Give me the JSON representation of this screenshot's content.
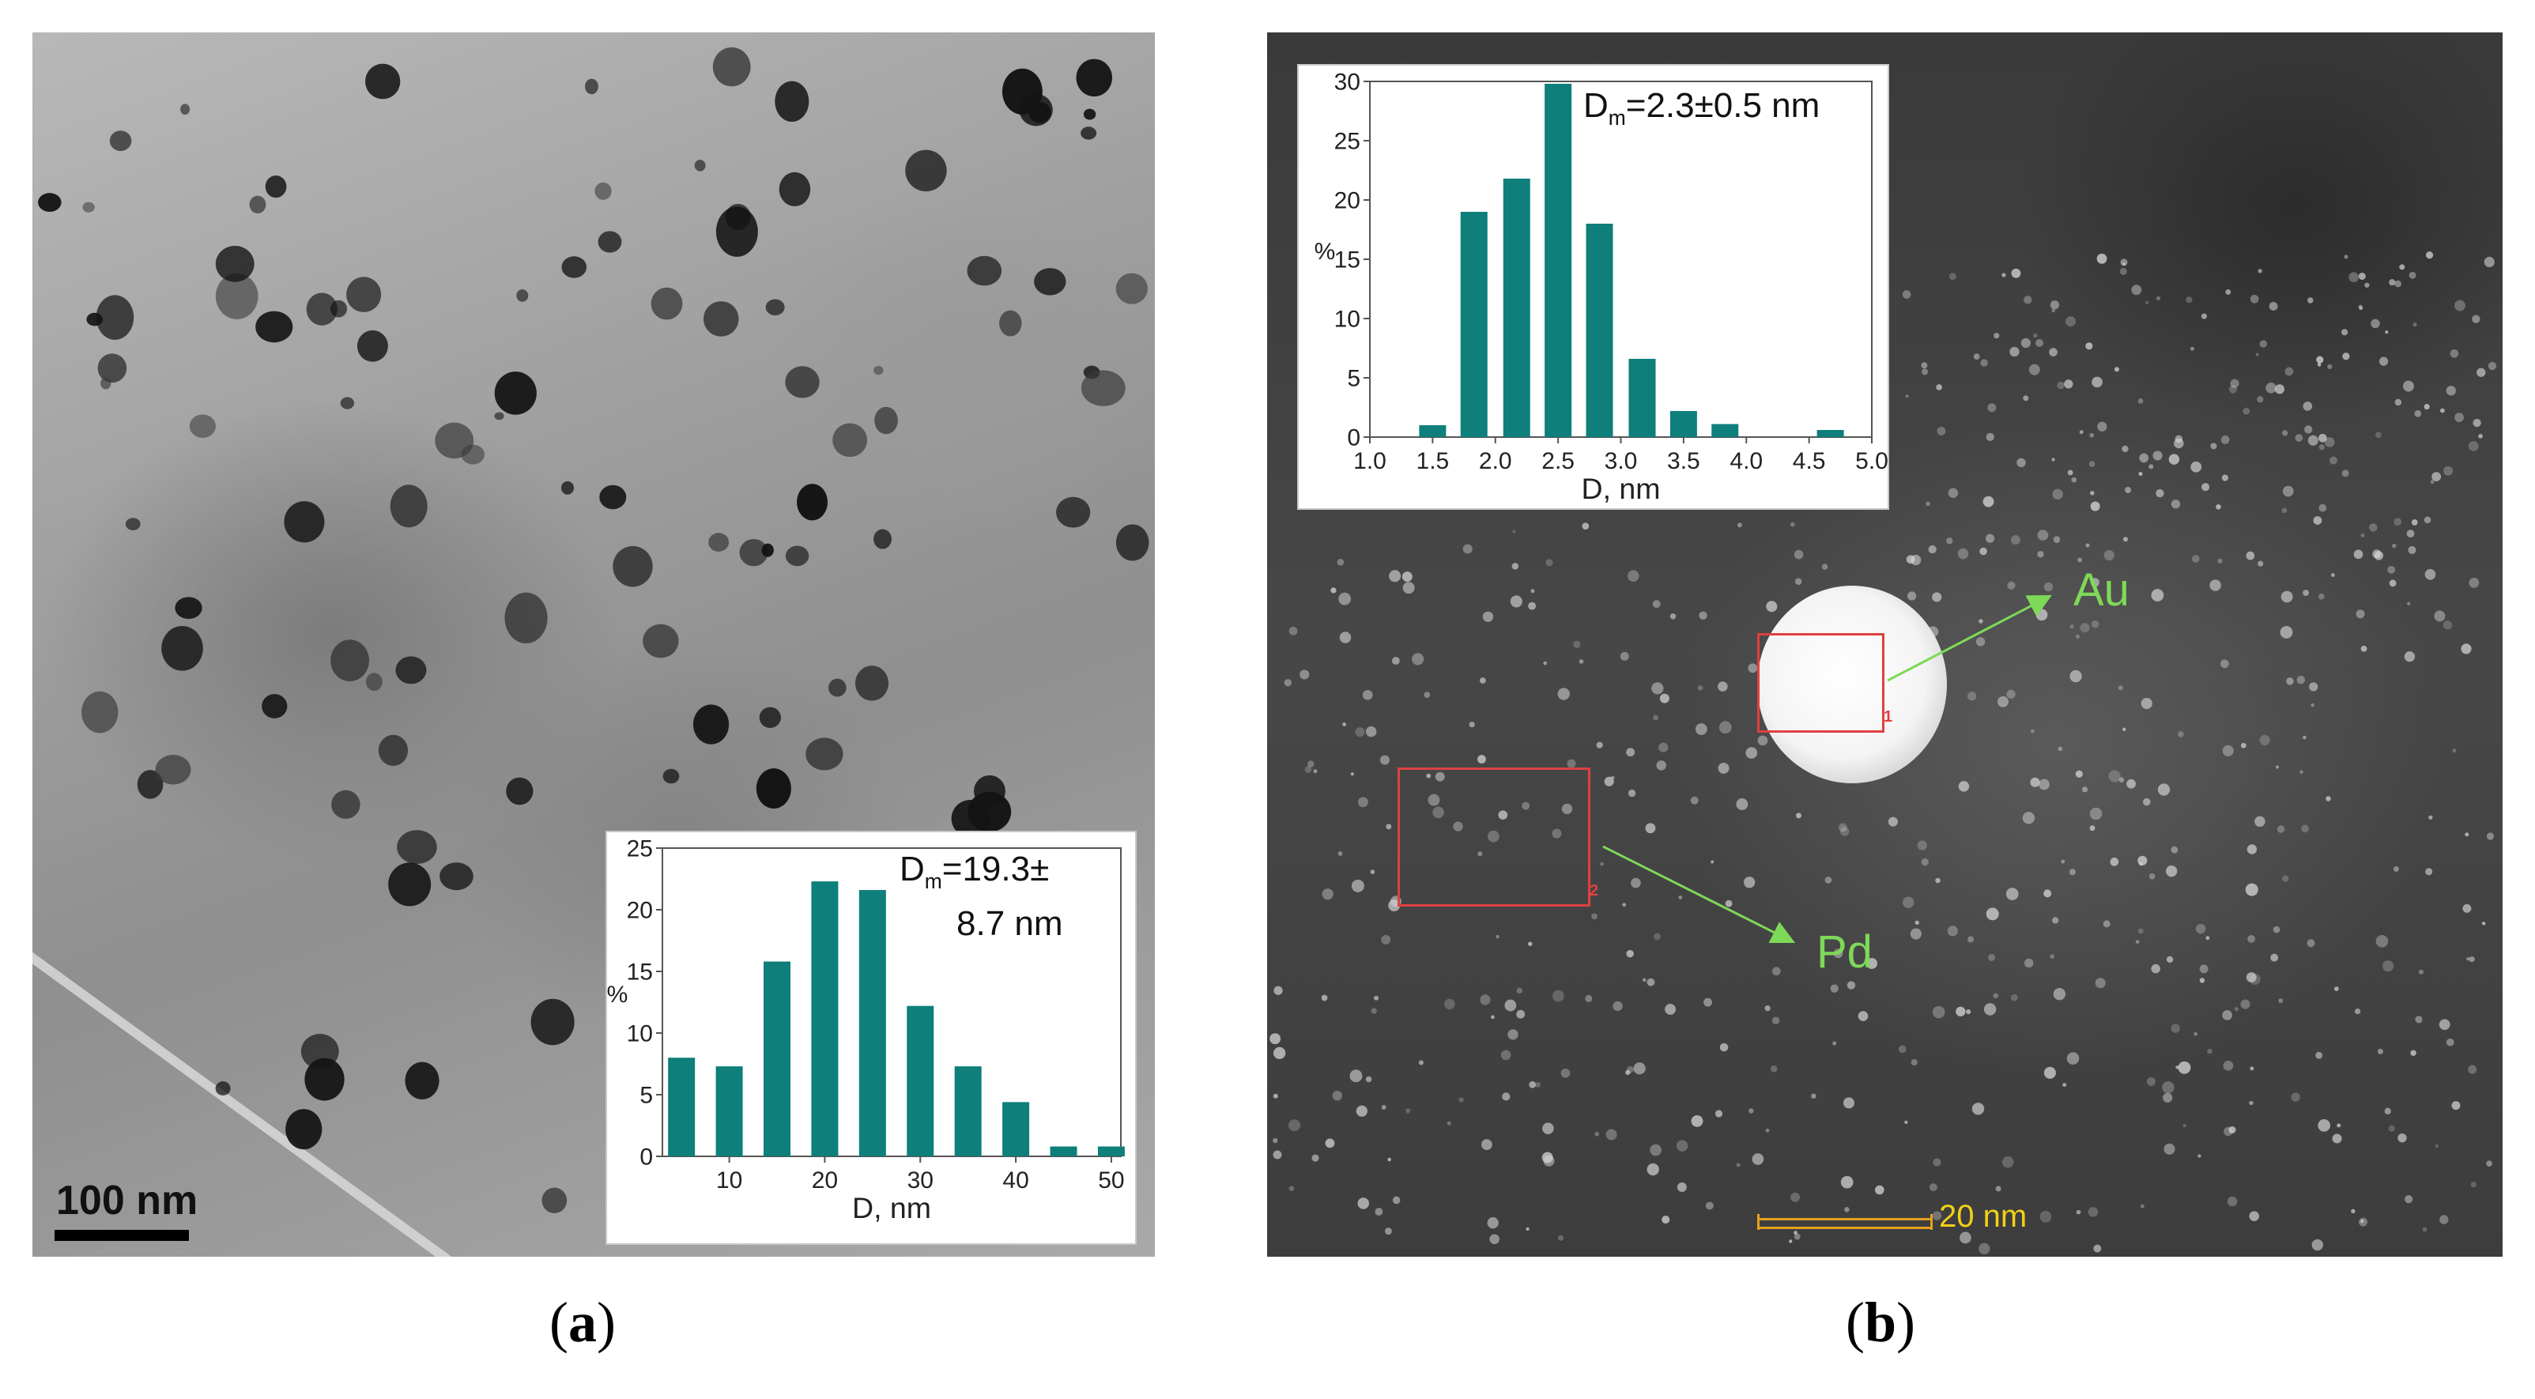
{
  "panel_a": {
    "scale_bar_label": "100 nm",
    "mean_size_label": {
      "prefix": "D",
      "subscript": "m",
      "line1": "=19.3±",
      "line2": "8.7 nm"
    },
    "chart_data": {
      "type": "bar",
      "xlabel": "D, nm",
      "ylabel": "%",
      "xlim": [
        3,
        51
      ],
      "ylim": [
        0,
        25
      ],
      "xticks": [
        10,
        20,
        30,
        40,
        50
      ],
      "yticks": [
        0,
        5,
        10,
        15,
        20,
        25
      ],
      "x": [
        5,
        10,
        15,
        20,
        25,
        30,
        35,
        40,
        45,
        50
      ],
      "values": [
        8.0,
        7.3,
        15.8,
        22.3,
        21.6,
        12.2,
        7.3,
        4.4,
        0.8,
        0.8
      ],
      "bar_color": "#0e7f7b"
    }
  },
  "panel_b": {
    "scale_bar_label": "20 nm",
    "mean_size_label": {
      "prefix": "D",
      "subscript": "m",
      "line1": "=2.3±0.5 nm"
    },
    "region_labels": {
      "au": "Au",
      "pd": "Pd"
    },
    "roi_numbers": {
      "au": "1",
      "pd": "2"
    },
    "chart_data": {
      "type": "bar",
      "xlabel": "D, nm",
      "ylabel": "%",
      "xlim": [
        1.0,
        5.0
      ],
      "ylim": [
        0,
        30
      ],
      "xticks": [
        "1.0",
        "1.5",
        "2.0",
        "2.5",
        "3.0",
        "3.5",
        "4.0",
        "4.5",
        "5.0"
      ],
      "yticks": [
        0,
        5,
        10,
        15,
        20,
        25,
        30
      ],
      "x": [
        1.5,
        1.83,
        2.17,
        2.5,
        2.83,
        3.17,
        3.5,
        3.83,
        4.67
      ],
      "values": [
        1.0,
        19.0,
        21.8,
        29.8,
        18.0,
        6.6,
        2.2,
        1.1,
        0.6
      ],
      "bar_color": "#0e7f7b"
    }
  },
  "captions": {
    "a": "a",
    "b": "b"
  },
  "colors": {
    "accent_green": "#7ed957",
    "roi_red": "#e04040",
    "scale_yellow": "#f2d016"
  }
}
